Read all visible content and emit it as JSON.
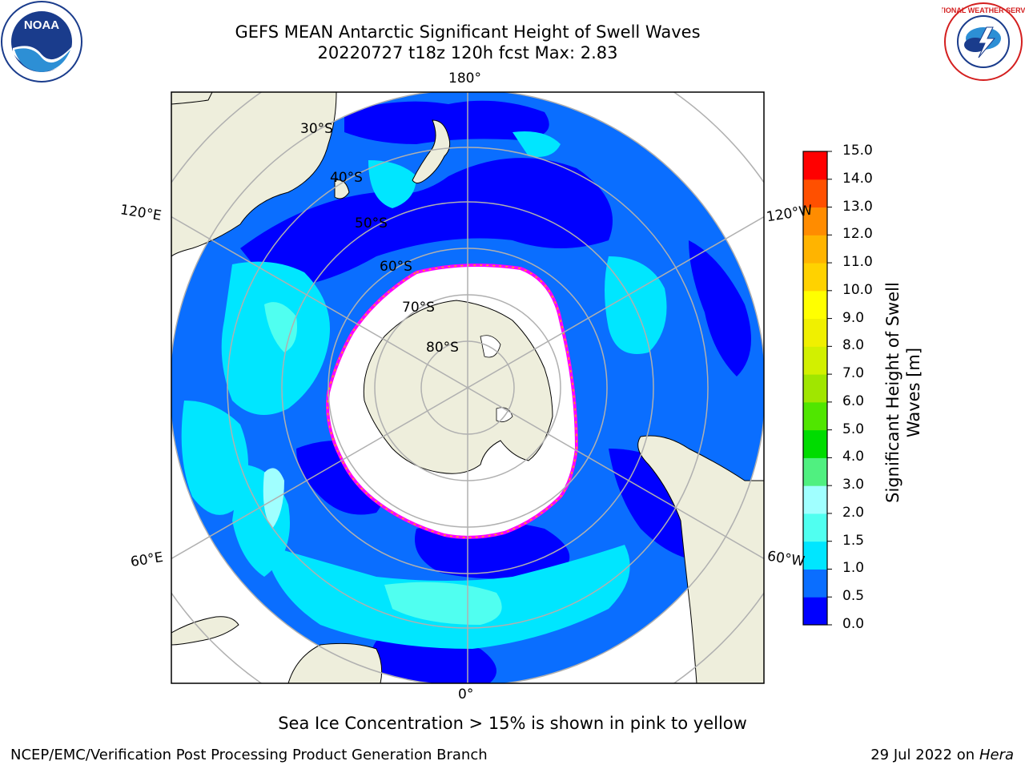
{
  "title": {
    "line1": "GEFS MEAN Antarctic Significant Height of Swell Waves",
    "line2": "20220727 t18z 120h fcst   Max: 2.83"
  },
  "logos": {
    "left": "noaa-logo",
    "left_text": "NOAA",
    "right": "national-weather-service-logo",
    "right_text": "NATIONAL WEATHER SERVICE"
  },
  "map": {
    "projection": "south polar stereographic",
    "longitude_labels": {
      "top": "180°",
      "bottom": "0°",
      "upper_left": "120°E",
      "upper_right": "120°W",
      "lower_left": "60°E",
      "lower_right": "60°W"
    },
    "latitude_labels": [
      "30°S",
      "40°S",
      "50°S",
      "60°S",
      "70°S",
      "80°S"
    ],
    "colors": {
      "land": "#eeeedc",
      "ice": "#ffffff",
      "ice_edge": [
        "#ff00ff",
        "#ffb000",
        "#ffd700"
      ],
      "gridline": "#b0b0b0"
    }
  },
  "colorbar": {
    "label": "Significant Height of Swell Waves [m]",
    "ticks": [
      "0.0",
      "0.5",
      "1.0",
      "1.5",
      "2.0",
      "3.0",
      "4.0",
      "5.0",
      "6.0",
      "7.0",
      "8.0",
      "9.0",
      "10.0",
      "11.0",
      "12.0",
      "13.0",
      "14.0",
      "15.0"
    ],
    "colors": [
      "#0000ff",
      "#0a6eff",
      "#00e6ff",
      "#50fff0",
      "#a0ffff",
      "#50f080",
      "#00dc00",
      "#50e600",
      "#a0e600",
      "#d2f000",
      "#f0f000",
      "#ffff00",
      "#ffd200",
      "#ffb400",
      "#ff8c00",
      "#ff5000",
      "#ff0000"
    ]
  },
  "subtitle": "Sea Ice Concentration > 15% is shown in pink to yellow",
  "footer": {
    "left": "NCEP/EMC/Verification Post Processing Product Generation Branch",
    "right_date": "29 Jul 2022 on ",
    "right_host": "Hera"
  }
}
